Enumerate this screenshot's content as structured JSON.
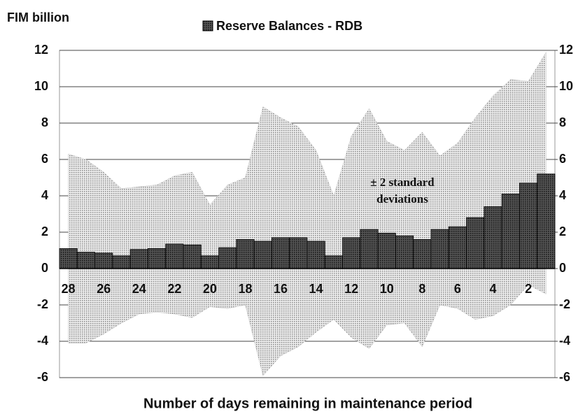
{
  "chart_data": {
    "type": "bar",
    "title": "Reserve Balances - RDB",
    "y_axis_label": "FIM billion",
    "x_axis_label": "Number of days remaining in maintenance period",
    "categories": [
      28,
      null,
      26,
      null,
      24,
      null,
      22,
      null,
      20,
      null,
      18,
      null,
      16,
      null,
      14,
      null,
      12,
      null,
      10,
      null,
      8,
      null,
      6,
      null,
      4,
      null,
      2,
      null
    ],
    "series": [
      {
        "name": "Reserve Balances - RDB",
        "color": "#3a3a3a",
        "values": [
          1.1,
          0.9,
          0.85,
          0.7,
          1.05,
          1.1,
          1.35,
          1.3,
          0.7,
          1.15,
          1.6,
          1.5,
          1.7,
          1.7,
          1.5,
          0.7,
          1.7,
          2.15,
          1.95,
          1.8,
          1.6,
          2.15,
          2.3,
          2.8,
          3.4,
          4.1,
          4.7,
          5.2
        ]
      }
    ],
    "band": {
      "color": "#c4c4c4",
      "upper": [
        6.3,
        6.0,
        5.3,
        4.4,
        4.5,
        4.6,
        5.1,
        5.3,
        3.5,
        4.6,
        5.0,
        8.9,
        8.3,
        7.8,
        6.5,
        4.0,
        7.3,
        8.8,
        7.0,
        6.5,
        7.5,
        6.2,
        6.9,
        8.3,
        9.5,
        10.4,
        10.3,
        11.9
      ],
      "lower": [
        -4.1,
        -4.1,
        -3.6,
        -3.0,
        -2.5,
        -2.4,
        -2.5,
        -2.7,
        -2.1,
        -2.2,
        -2.0,
        -5.9,
        -4.8,
        -4.3,
        -3.5,
        -2.8,
        -3.8,
        -4.4,
        -3.1,
        -3.0,
        -4.3,
        -2.0,
        -2.2,
        -2.8,
        -2.6,
        -2.0,
        -0.9,
        -1.4
      ]
    },
    "annotation": [
      "± 2 standard",
      "deviations"
    ],
    "ylim": [
      -6,
      12
    ],
    "yticks": [
      -6,
      -4,
      -2,
      0,
      2,
      4,
      6,
      8,
      10,
      12
    ],
    "y2lim": [
      -6,
      12
    ],
    "y2ticks": [
      -6,
      -4,
      -2,
      0,
      2,
      4,
      6,
      8,
      10,
      12
    ],
    "grid": true
  }
}
